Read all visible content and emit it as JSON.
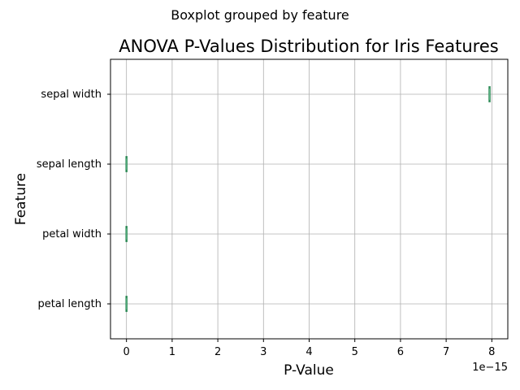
{
  "chart_data": {
    "type": "boxplot",
    "orientation": "horizontal",
    "suptitle": "Boxplot grouped by feature",
    "title": "ANOVA P-Values Distribution for Iris Features",
    "xlabel": "P-Value",
    "ylabel": "Feature",
    "x_offset_label": "1e−15",
    "x_scale": 1e-15,
    "xlim": [
      -0.35,
      8.35
    ],
    "xticks": [
      0,
      1,
      2,
      3,
      4,
      5,
      6,
      7,
      8
    ],
    "xtick_labels": [
      "0",
      "1",
      "2",
      "3",
      "4",
      "5",
      "6",
      "7",
      "8"
    ],
    "grid": true,
    "box_color": "#2e8b57",
    "categories": [
      "sepal width",
      "sepal length",
      "petal width",
      "petal length"
    ],
    "values": [
      7.95,
      0.0,
      0.0,
      0.0
    ]
  }
}
